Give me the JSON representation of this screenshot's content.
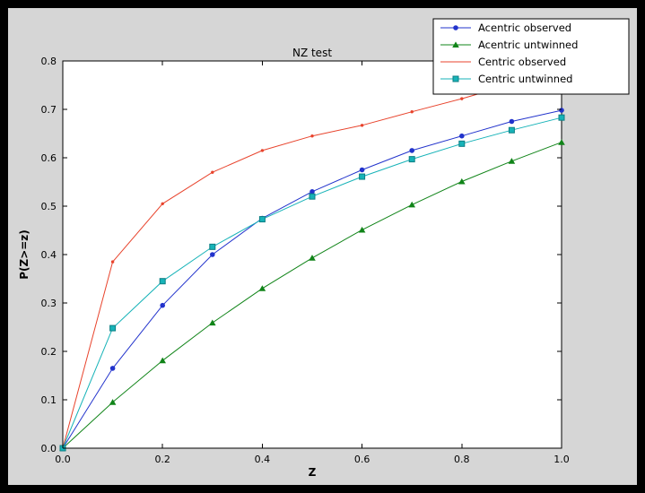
{
  "window": {
    "background": "#000000",
    "figure_bg": "#d6d6d6",
    "plot_bg": "#ffffff",
    "frame_color": "#000000",
    "text_color": "#000000"
  },
  "chart_data": {
    "type": "line",
    "title": "NZ test",
    "xlabel": "Z",
    "ylabel": "P(Z>=z)",
    "xlim": [
      0.0,
      1.0
    ],
    "ylim": [
      0.0,
      0.8
    ],
    "xtick_labels": [
      "0.0",
      "0.2",
      "0.4",
      "0.6",
      "0.8",
      "1.0"
    ],
    "ytick_labels": [
      "0.0",
      "0.1",
      "0.2",
      "0.3",
      "0.4",
      "0.5",
      "0.6",
      "0.7",
      "0.8"
    ],
    "grid": false,
    "legend_position": "upper right",
    "x": [
      0.0,
      0.1,
      0.2,
      0.3,
      0.4,
      0.5,
      0.6,
      0.7,
      0.8,
      0.9,
      1.0
    ],
    "series": [
      {
        "name": "Acentric observed",
        "color": "#2233cc",
        "marker": "circle",
        "marker_edge": null,
        "values": [
          0.0,
          0.165,
          0.295,
          0.4,
          0.475,
          0.53,
          0.575,
          0.615,
          0.645,
          0.675,
          0.698
        ]
      },
      {
        "name": "Acentric untwinned",
        "color": "#108418",
        "marker": "triangle",
        "marker_edge": null,
        "values": [
          0.0,
          0.095,
          0.181,
          0.259,
          0.33,
          0.393,
          0.451,
          0.503,
          0.551,
          0.593,
          0.632
        ]
      },
      {
        "name": "Centric observed",
        "color": "#e8432c",
        "marker": "dot",
        "marker_edge": null,
        "values": [
          0.0,
          0.385,
          0.505,
          0.57,
          0.615,
          0.645,
          0.667,
          0.695,
          0.722,
          0.752,
          0.778
        ]
      },
      {
        "name": "Centric untwinned",
        "color": "#17b3b8",
        "marker": "square",
        "marker_edge": "#0c7f84",
        "values": [
          0.0,
          0.248,
          0.345,
          0.416,
          0.473,
          0.52,
          0.561,
          0.597,
          0.629,
          0.657,
          0.683
        ]
      }
    ]
  }
}
